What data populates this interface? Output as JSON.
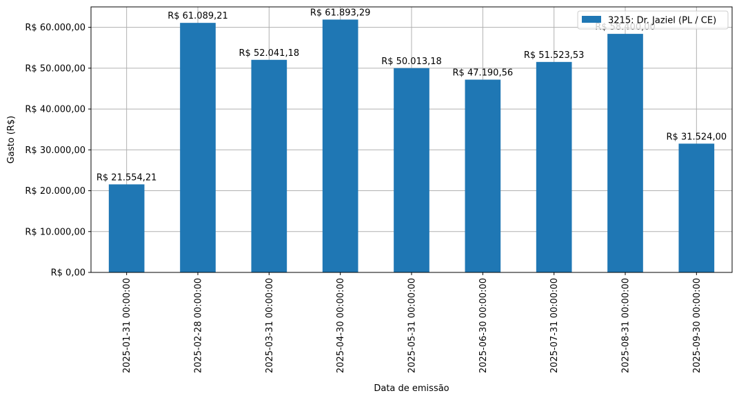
{
  "chart_data": {
    "type": "bar",
    "categories": [
      "2025-01-31 00:00:00",
      "2025-02-28 00:00:00",
      "2025-03-31 00:00:00",
      "2025-04-30 00:00:00",
      "2025-05-31 00:00:00",
      "2025-06-30 00:00:00",
      "2025-07-31 00:00:00",
      "2025-08-31 00:00:00",
      "2025-09-30 00:00:00"
    ],
    "series": [
      {
        "name": "3215: Dr. Jaziel (PL / CE)",
        "values": [
          21554.21,
          61089.21,
          52041.18,
          61893.29,
          50013.18,
          47190.56,
          51523.53,
          58400.0,
          31524.0
        ],
        "labels": [
          "R$ 21.554,21",
          "R$ 61.089,21",
          "R$ 52.041,18",
          "R$ 61.893,29",
          "R$ 50.013,18",
          "R$ 47.190,56",
          "R$ 51.523,53",
          "R$ 58.400,00",
          "R$ 31.524,00"
        ],
        "color": "#1f77b4"
      }
    ],
    "xlabel": "Data de emissão",
    "ylabel": "Gasto (R$)",
    "ylim": [
      0,
      65000
    ],
    "yticks": [
      0,
      10000,
      20000,
      30000,
      40000,
      50000,
      60000
    ],
    "ytick_labels": [
      "R$ 0,00",
      "R$ 10.000,00",
      "R$ 20.000,00",
      "R$ 30.000,00",
      "R$ 40.000,00",
      "R$ 50.000,00",
      "R$ 60.000,00"
    ],
    "grid": true,
    "legend_position": "top-right",
    "grid_color": "#b0b0b0"
  }
}
